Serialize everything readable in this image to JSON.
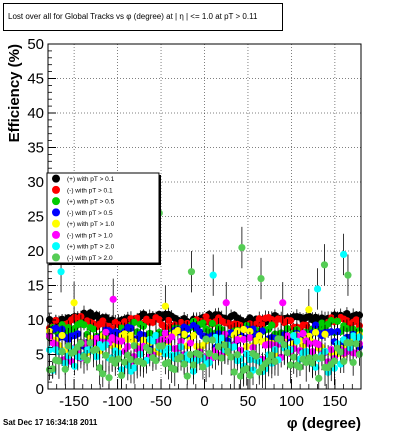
{
  "footer_timestamp": "Sat Dec 17 16:34:18 2011",
  "chart_data": {
    "type": "scatter",
    "title": "Lost over all for Global Tracks vs φ (degree) at | η | <= 1.0 at pT > 0.11",
    "xlabel": "φ (degree)",
    "ylabel": "Efficiency (%)",
    "xlim": [
      -180,
      180
    ],
    "ylim": [
      0,
      50
    ],
    "x_ticks": [
      -150,
      -100,
      -50,
      0,
      50,
      100,
      150
    ],
    "y_ticks": [
      0,
      5,
      10,
      15,
      20,
      25,
      30,
      35,
      40,
      45,
      50
    ],
    "grid": true,
    "legend_position": "center-left",
    "series": [
      {
        "name": "(+) with pT > 0.1",
        "color": "#000000",
        "base": 10.3,
        "noise": 0.6,
        "spikes": [],
        "error": 0.8
      },
      {
        "name": "(-) with pT > 0.1",
        "color": "#ff0000",
        "base": 9.6,
        "noise": 0.8,
        "spikes": [],
        "error": 0.8
      },
      {
        "name": "(+) with pT > 0.5",
        "color": "#00cc00",
        "base": 8.4,
        "noise": 1.2,
        "spikes": [],
        "error": 1.0
      },
      {
        "name": "(-) with pT > 0.5",
        "color": "#0000ff",
        "base": 7.6,
        "noise": 1.4,
        "spikes": [],
        "error": 1.0
      },
      {
        "name": "(+) with pT > 1.0",
        "color": "#ffff00",
        "base": 6.6,
        "noise": 1.6,
        "spikes": [
          [
            -150,
            12.5
          ],
          [
            -45,
            12.0
          ],
          [
            120,
            11.5
          ]
        ],
        "error": 1.2
      },
      {
        "name": "(-) with pT > 1.0",
        "color": "#ff00ff",
        "base": 6.0,
        "noise": 1.8,
        "spikes": [
          [
            -105,
            13.0
          ],
          [
            25,
            12.5
          ],
          [
            90,
            12.5
          ]
        ],
        "error": 1.2
      },
      {
        "name": "(+) with pT > 2.0",
        "color": "#00ffff",
        "base": 5.0,
        "noise": 2.2,
        "spikes": [
          [
            -165,
            17.0
          ],
          [
            10,
            16.5
          ],
          [
            130,
            14.5
          ],
          [
            160,
            19.5
          ]
        ],
        "error": 2.0
      },
      {
        "name": "(-) with pT > 2.0",
        "color": "#55cc55",
        "base": 4.4,
        "noise": 2.4,
        "spikes": [
          [
            -52,
            25.5
          ],
          [
            -15,
            17.0
          ],
          [
            43,
            20.5
          ],
          [
            65,
            16.0
          ],
          [
            138,
            18.0
          ],
          [
            165,
            16.5
          ]
        ],
        "error": 2.0
      }
    ]
  }
}
